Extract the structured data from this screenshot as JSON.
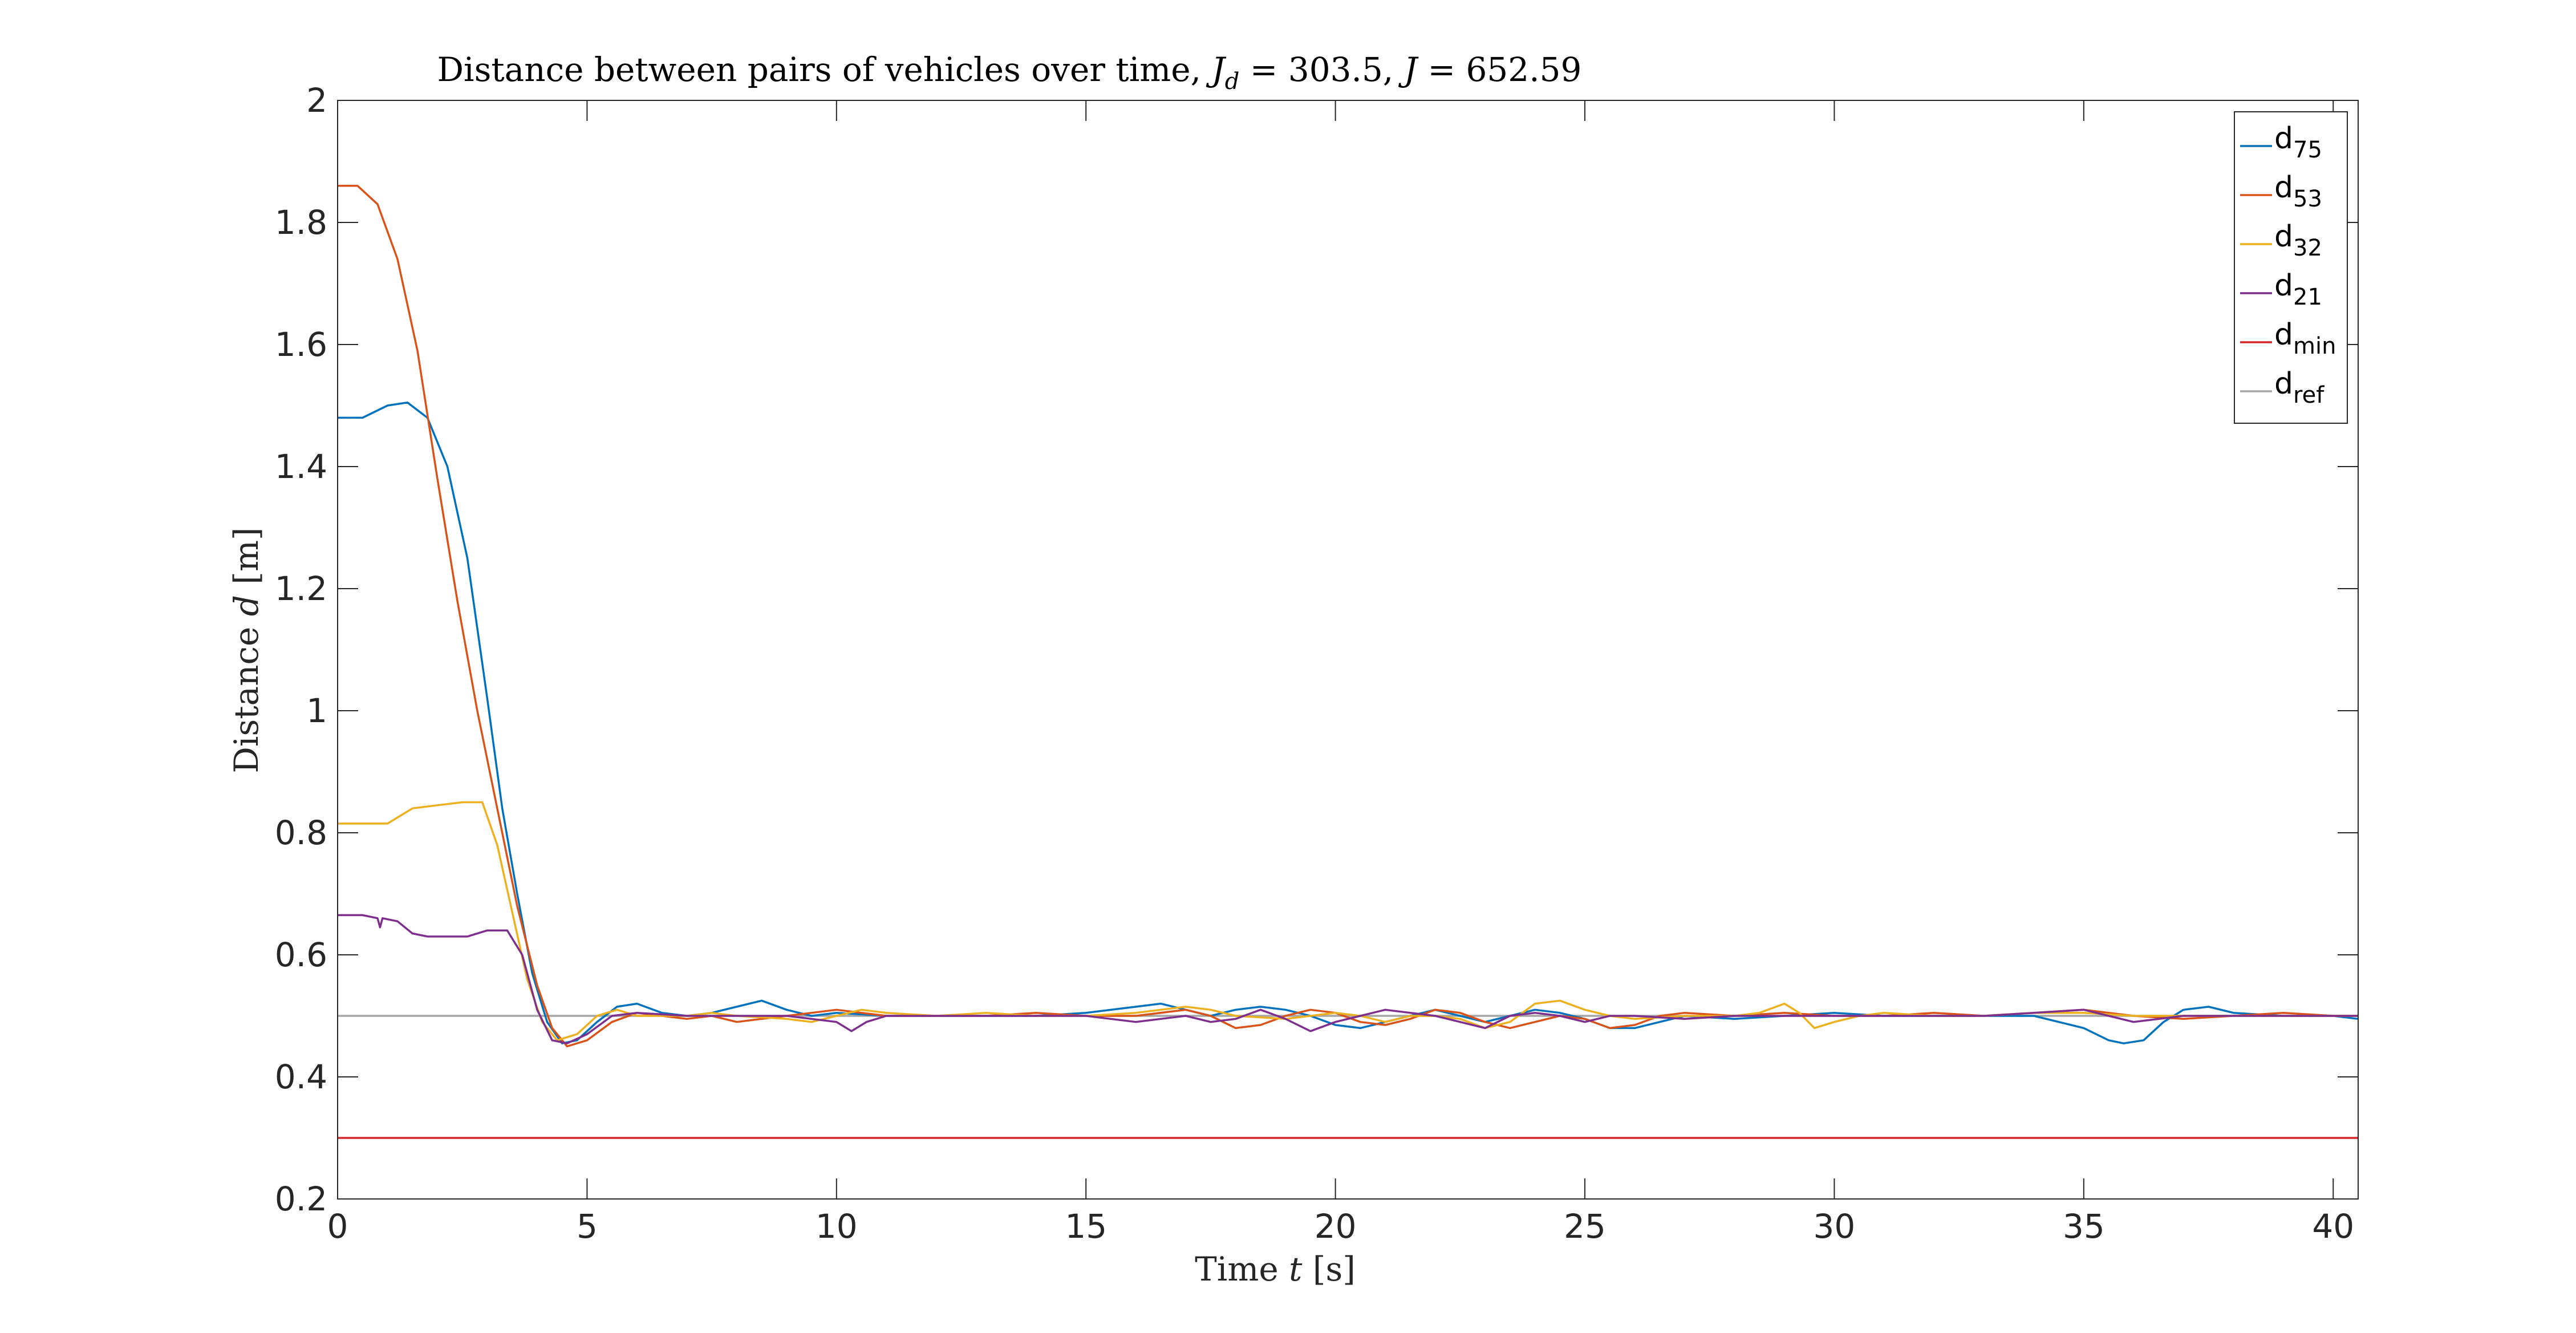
{
  "chart_data": {
    "type": "line",
    "title": {
      "prefix": "Distance between pairs of vehicles over time, ",
      "jd_symbol": "J",
      "jd_sub": "d",
      "jd_value": " = 303.5, ",
      "j_symbol": "J",
      "j_value": " = 652.59"
    },
    "xlabel": {
      "text": "Time ",
      "symbol": "t",
      "unit": " [s]"
    },
    "ylabel": {
      "text": "Distance ",
      "symbol": "d",
      "unit": " [m]"
    },
    "xlim": [
      0,
      40.5
    ],
    "ylim": [
      0.2,
      2
    ],
    "xticks": [
      "0",
      "5",
      "10",
      "15",
      "20",
      "25",
      "30",
      "35",
      "40"
    ],
    "yticks": [
      "0.2",
      "0.4",
      "0.6",
      "0.8",
      "1",
      "1.2",
      "1.4",
      "1.6",
      "1.8",
      "2"
    ],
    "grid": false,
    "legend_position": "top-right",
    "series": [
      {
        "name": "d",
        "sub": "75",
        "color": "#0072BD",
        "points": [
          [
            0,
            1.48
          ],
          [
            0.5,
            1.48
          ],
          [
            1,
            1.5
          ],
          [
            1.4,
            1.505
          ],
          [
            1.8,
            1.48
          ],
          [
            2.2,
            1.4
          ],
          [
            2.6,
            1.25
          ],
          [
            3,
            1.02
          ],
          [
            3.3,
            0.84
          ],
          [
            3.6,
            0.7
          ],
          [
            3.9,
            0.57
          ],
          [
            4.2,
            0.49
          ],
          [
            4.5,
            0.455
          ],
          [
            4.8,
            0.46
          ],
          [
            5.2,
            0.49
          ],
          [
            5.6,
            0.515
          ],
          [
            6,
            0.52
          ],
          [
            6.5,
            0.505
          ],
          [
            7,
            0.5
          ],
          [
            7.5,
            0.505
          ],
          [
            8,
            0.515
          ],
          [
            8.5,
            0.525
          ],
          [
            9,
            0.51
          ],
          [
            9.5,
            0.5
          ],
          [
            10,
            0.505
          ],
          [
            11,
            0.5
          ],
          [
            12,
            0.5
          ],
          [
            13,
            0.5
          ],
          [
            14,
            0.5
          ],
          [
            15,
            0.505
          ],
          [
            16,
            0.515
          ],
          [
            16.5,
            0.52
          ],
          [
            17,
            0.51
          ],
          [
            17.5,
            0.5
          ],
          [
            18,
            0.51
          ],
          [
            18.5,
            0.515
          ],
          [
            19,
            0.51
          ],
          [
            19.5,
            0.5
          ],
          [
            20,
            0.485
          ],
          [
            20.5,
            0.48
          ],
          [
            21,
            0.49
          ],
          [
            21.5,
            0.5
          ],
          [
            22,
            0.51
          ],
          [
            22.5,
            0.5
          ],
          [
            23,
            0.49
          ],
          [
            23.5,
            0.5
          ],
          [
            24,
            0.51
          ],
          [
            24.5,
            0.505
          ],
          [
            25,
            0.495
          ],
          [
            25.5,
            0.48
          ],
          [
            26,
            0.48
          ],
          [
            26.5,
            0.49
          ],
          [
            27,
            0.5
          ],
          [
            28,
            0.495
          ],
          [
            29,
            0.5
          ],
          [
            30,
            0.505
          ],
          [
            31,
            0.5
          ],
          [
            32,
            0.5
          ],
          [
            33,
            0.5
          ],
          [
            34,
            0.5
          ],
          [
            34.5,
            0.49
          ],
          [
            35,
            0.48
          ],
          [
            35.5,
            0.46
          ],
          [
            35.8,
            0.455
          ],
          [
            36.2,
            0.46
          ],
          [
            36.6,
            0.49
          ],
          [
            37,
            0.51
          ],
          [
            37.5,
            0.515
          ],
          [
            38,
            0.505
          ],
          [
            39,
            0.5
          ],
          [
            40,
            0.5
          ],
          [
            40.5,
            0.495
          ]
        ]
      },
      {
        "name": "d",
        "sub": "53",
        "color": "#D95319",
        "points": [
          [
            0,
            1.86
          ],
          [
            0.4,
            1.86
          ],
          [
            0.8,
            1.83
          ],
          [
            1.2,
            1.74
          ],
          [
            1.6,
            1.59
          ],
          [
            2,
            1.38
          ],
          [
            2.4,
            1.18
          ],
          [
            2.8,
            1.0
          ],
          [
            3.2,
            0.84
          ],
          [
            3.6,
            0.68
          ],
          [
            4,
            0.55
          ],
          [
            4.3,
            0.48
          ],
          [
            4.6,
            0.45
          ],
          [
            5,
            0.46
          ],
          [
            5.5,
            0.49
          ],
          [
            6,
            0.505
          ],
          [
            6.5,
            0.5
          ],
          [
            7,
            0.495
          ],
          [
            7.5,
            0.5
          ],
          [
            8,
            0.49
          ],
          [
            8.5,
            0.495
          ],
          [
            9,
            0.5
          ],
          [
            9.5,
            0.505
          ],
          [
            10,
            0.51
          ],
          [
            10.5,
            0.505
          ],
          [
            11,
            0.5
          ],
          [
            12,
            0.5
          ],
          [
            13,
            0.5
          ],
          [
            14,
            0.505
          ],
          [
            15,
            0.5
          ],
          [
            16,
            0.5
          ],
          [
            17,
            0.51
          ],
          [
            17.5,
            0.5
          ],
          [
            18,
            0.48
          ],
          [
            18.5,
            0.485
          ],
          [
            19,
            0.5
          ],
          [
            19.5,
            0.51
          ],
          [
            20,
            0.505
          ],
          [
            20.5,
            0.49
          ],
          [
            21,
            0.485
          ],
          [
            21.5,
            0.495
          ],
          [
            22,
            0.51
          ],
          [
            22.5,
            0.505
          ],
          [
            23,
            0.49
          ],
          [
            23.5,
            0.48
          ],
          [
            24,
            0.49
          ],
          [
            24.5,
            0.5
          ],
          [
            25,
            0.495
          ],
          [
            25.5,
            0.48
          ],
          [
            26,
            0.485
          ],
          [
            26.5,
            0.5
          ],
          [
            27,
            0.505
          ],
          [
            28,
            0.5
          ],
          [
            29,
            0.505
          ],
          [
            30,
            0.5
          ],
          [
            31,
            0.5
          ],
          [
            32,
            0.505
          ],
          [
            33,
            0.5
          ],
          [
            34,
            0.505
          ],
          [
            35,
            0.51
          ],
          [
            35.5,
            0.505
          ],
          [
            36,
            0.5
          ],
          [
            37,
            0.495
          ],
          [
            38,
            0.5
          ],
          [
            39,
            0.505
          ],
          [
            40,
            0.5
          ],
          [
            40.5,
            0.5
          ]
        ]
      },
      {
        "name": "d",
        "sub": "32",
        "color": "#EDB120",
        "points": [
          [
            0,
            0.815
          ],
          [
            0.5,
            0.815
          ],
          [
            1,
            0.815
          ],
          [
            1.1,
            0.82
          ],
          [
            1.5,
            0.84
          ],
          [
            2,
            0.845
          ],
          [
            2.5,
            0.85
          ],
          [
            2.9,
            0.85
          ],
          [
            3.2,
            0.78
          ],
          [
            3.5,
            0.67
          ],
          [
            3.8,
            0.56
          ],
          [
            4.1,
            0.49
          ],
          [
            4.4,
            0.46
          ],
          [
            4.8,
            0.47
          ],
          [
            5.2,
            0.5
          ],
          [
            5.6,
            0.51
          ],
          [
            6,
            0.5
          ],
          [
            7,
            0.5
          ],
          [
            7.5,
            0.505
          ],
          [
            8,
            0.5
          ],
          [
            9,
            0.495
          ],
          [
            9.5,
            0.49
          ],
          [
            10,
            0.5
          ],
          [
            10.5,
            0.51
          ],
          [
            11,
            0.505
          ],
          [
            12,
            0.5
          ],
          [
            13,
            0.505
          ],
          [
            14,
            0.5
          ],
          [
            15,
            0.5
          ],
          [
            16,
            0.505
          ],
          [
            16.5,
            0.51
          ],
          [
            17,
            0.515
          ],
          [
            17.5,
            0.51
          ],
          [
            18,
            0.5
          ],
          [
            19,
            0.495
          ],
          [
            19.5,
            0.5
          ],
          [
            20,
            0.505
          ],
          [
            20.5,
            0.5
          ],
          [
            21,
            0.49
          ],
          [
            21.5,
            0.5
          ],
          [
            22,
            0.5
          ],
          [
            22.5,
            0.495
          ],
          [
            23,
            0.48
          ],
          [
            23.5,
            0.49
          ],
          [
            24,
            0.52
          ],
          [
            24.5,
            0.525
          ],
          [
            25,
            0.51
          ],
          [
            25.5,
            0.5
          ],
          [
            26,
            0.495
          ],
          [
            27,
            0.5
          ],
          [
            28,
            0.5
          ],
          [
            28.5,
            0.505
          ],
          [
            29,
            0.52
          ],
          [
            29.3,
            0.505
          ],
          [
            29.6,
            0.48
          ],
          [
            30,
            0.49
          ],
          [
            30.5,
            0.5
          ],
          [
            31,
            0.505
          ],
          [
            32,
            0.5
          ],
          [
            33,
            0.5
          ],
          [
            34,
            0.505
          ],
          [
            35,
            0.505
          ],
          [
            36,
            0.5
          ],
          [
            37,
            0.5
          ],
          [
            38,
            0.5
          ],
          [
            39,
            0.5
          ],
          [
            40,
            0.5
          ],
          [
            40.5,
            0.5
          ]
        ]
      },
      {
        "name": "d",
        "sub": "21",
        "color": "#7E2F8E",
        "points": [
          [
            0,
            0.665
          ],
          [
            0.5,
            0.665
          ],
          [
            0.8,
            0.66
          ],
          [
            0.85,
            0.645
          ],
          [
            0.9,
            0.66
          ],
          [
            1.2,
            0.655
          ],
          [
            1.5,
            0.635
          ],
          [
            1.8,
            0.63
          ],
          [
            2.2,
            0.63
          ],
          [
            2.6,
            0.63
          ],
          [
            3,
            0.64
          ],
          [
            3.4,
            0.64
          ],
          [
            3.7,
            0.6
          ],
          [
            4,
            0.51
          ],
          [
            4.3,
            0.46
          ],
          [
            4.6,
            0.455
          ],
          [
            5,
            0.47
          ],
          [
            5.5,
            0.5
          ],
          [
            6,
            0.505
          ],
          [
            7,
            0.5
          ],
          [
            8,
            0.5
          ],
          [
            9,
            0.5
          ],
          [
            10,
            0.49
          ],
          [
            10.3,
            0.475
          ],
          [
            10.6,
            0.49
          ],
          [
            11,
            0.5
          ],
          [
            12,
            0.5
          ],
          [
            13,
            0.5
          ],
          [
            14,
            0.5
          ],
          [
            15,
            0.5
          ],
          [
            16,
            0.49
          ],
          [
            16.5,
            0.495
          ],
          [
            17,
            0.5
          ],
          [
            17.5,
            0.49
          ],
          [
            18,
            0.495
          ],
          [
            18.5,
            0.51
          ],
          [
            19,
            0.495
          ],
          [
            19.5,
            0.475
          ],
          [
            20,
            0.49
          ],
          [
            20.5,
            0.5
          ],
          [
            21,
            0.51
          ],
          [
            21.5,
            0.505
          ],
          [
            22,
            0.5
          ],
          [
            22.5,
            0.49
          ],
          [
            23,
            0.48
          ],
          [
            23.5,
            0.5
          ],
          [
            24,
            0.505
          ],
          [
            24.5,
            0.5
          ],
          [
            25,
            0.49
          ],
          [
            25.5,
            0.5
          ],
          [
            26,
            0.5
          ],
          [
            27,
            0.495
          ],
          [
            28,
            0.5
          ],
          [
            29,
            0.5
          ],
          [
            30,
            0.5
          ],
          [
            31,
            0.5
          ],
          [
            32,
            0.5
          ],
          [
            33,
            0.5
          ],
          [
            34,
            0.505
          ],
          [
            35,
            0.51
          ],
          [
            35.5,
            0.5
          ],
          [
            36,
            0.49
          ],
          [
            37,
            0.5
          ],
          [
            38,
            0.5
          ],
          [
            39,
            0.5
          ],
          [
            40,
            0.5
          ],
          [
            40.5,
            0.5
          ]
        ]
      },
      {
        "name": "d",
        "sub": "min",
        "color": "#D62728",
        "points": [
          [
            0,
            0.3
          ],
          [
            40.5,
            0.3
          ]
        ]
      },
      {
        "name": "d",
        "sub": "ref",
        "color": "#A6A6A6",
        "points": [
          [
            0,
            0.5
          ],
          [
            40.5,
            0.5
          ]
        ]
      }
    ]
  }
}
